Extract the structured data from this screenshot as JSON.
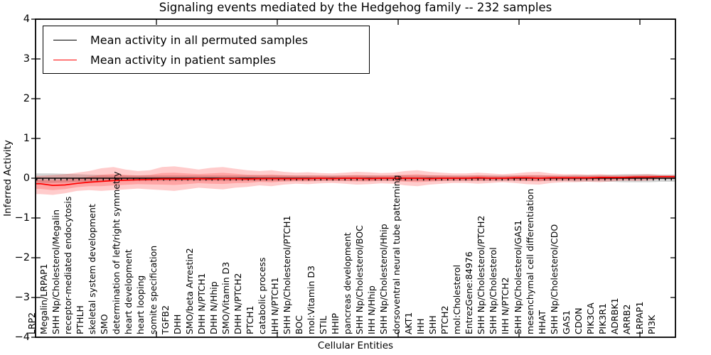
{
  "figure": {
    "title": "Signaling events mediated by the Hedgehog family -- 232 samples",
    "xlabel": "Cellular Entities",
    "ylabel": "Inferred Activity"
  },
  "legend": {
    "items": [
      {
        "label": "Mean activity in all permuted samples",
        "color": "#000000"
      },
      {
        "label": "Mean activity in patient samples",
        "color": "#ff0000"
      }
    ]
  },
  "axes": {
    "ylim": [
      -4,
      4
    ],
    "ytick_values": [
      4,
      3,
      2,
      1,
      0,
      -1,
      -2,
      -3,
      -4
    ],
    "yticklabels": [
      "4",
      "3",
      "2",
      "1",
      "0",
      "−1",
      "−2",
      "−3",
      "−4"
    ],
    "xtick_values": [
      10,
      20,
      30,
      40,
      50
    ],
    "grid": false
  },
  "chart_data": {
    "type": "line",
    "title": "Signaling events mediated by the Hedgehog family -- 232 samples",
    "xlabel": "Cellular Entities",
    "ylabel": "Inferred Activity",
    "ylim": [
      -4,
      4
    ],
    "legend_position": "upper left",
    "grid": false,
    "categories": [
      "LRP2",
      "Megalin/LRPAP1",
      "SHH Np/Cholesterol/Megalin",
      "receptor-mediated endocytosis",
      "PTHLH",
      "skeletal system development",
      "SMO",
      "determination of left/right symmetry",
      "heart development",
      "heart looping",
      "somite specification",
      "TGFB2",
      "DHH",
      "SMO/beta Arrestin2",
      "DHH N/PTCH1",
      "DHH N/Hhip",
      "SMO/Vitamin D3",
      "DHH N/PTCH2",
      "PTCH1",
      "catabolic process",
      "IHH N/PTCH1",
      "SHH Np/Cholesterol/PTCH1",
      "BOC",
      "mol:Vitamin D3",
      "STIL",
      "HHIP",
      "pancreas development",
      "SHH Np/Cholesterol/BOC",
      "IHH N/Hhip",
      "SHH Np/Cholesterol/Hhip",
      "dorsoventral neural tube patterning",
      "AKT1",
      "IHH",
      "SHH",
      "PTCH2",
      "mol:Cholesterol",
      "EntrezGene:84976",
      "SHH Np/Cholesterol/PTCH2",
      "SHH Np/Cholesterol",
      "IHH N/PTCH2",
      "SHH Np/Cholesterol/GAS1",
      "mesenchymal cell differentiation",
      "HHAT",
      "SHH Np/Cholesterol/CDO",
      "GAS1",
      "CDON",
      "PIK3CA",
      "PIK3R1",
      "ADRBK1",
      "ARRB2",
      "LRPAP1",
      "PI3K"
    ],
    "series": [
      {
        "name": "Mean activity in all permuted samples",
        "color": "#000000",
        "style": "solid-with-dotted-overlay",
        "values": [
          0,
          0,
          0,
          0,
          0,
          0,
          0,
          0,
          0,
          0,
          0,
          0,
          0,
          0,
          0,
          0,
          0,
          0,
          0,
          0,
          0,
          0,
          0,
          0,
          0,
          0,
          0,
          0,
          0,
          0,
          0,
          0,
          0,
          0,
          0,
          0,
          0,
          0,
          0,
          0,
          0,
          0,
          0,
          0,
          0,
          0,
          0,
          0,
          0,
          0,
          0,
          0
        ]
      },
      {
        "name": "Mean activity in patient samples",
        "color": "#ff0000",
        "style": "solid",
        "values": [
          -0.14,
          -0.18,
          -0.17,
          -0.13,
          -0.1,
          -0.08,
          -0.06,
          -0.05,
          -0.04,
          -0.03,
          -0.02,
          -0.02,
          -0.02,
          -0.01,
          -0.02,
          -0.01,
          -0.01,
          -0.02,
          -0.01,
          -0.01,
          -0.01,
          -0.01,
          -0.01,
          0,
          -0.01,
          0,
          0,
          -0.01,
          0,
          0,
          0,
          0,
          -0.01,
          0,
          0,
          0,
          0.01,
          0,
          0,
          0.01,
          0.01,
          0,
          0.01,
          0.01,
          0.01,
          0.01,
          0.02,
          0.02,
          0.02,
          0.03,
          0.03,
          0.04
        ]
      }
    ],
    "bands": [
      {
        "name": "permuted-samples-band",
        "color": "rgba(130,130,130,0.35)",
        "upper": [
          0.12,
          0.12,
          0.11,
          0.1,
          0.09,
          0.08,
          0.07,
          0.07,
          0.07,
          0.07,
          0.07,
          0.07,
          0.07,
          0.07,
          0.07,
          0.07,
          0.07,
          0.07,
          0.07,
          0.07,
          0.07,
          0.07,
          0.07,
          0.07,
          0.07,
          0.07,
          0.07,
          0.07,
          0.07,
          0.07,
          0.07,
          0.07,
          0.07,
          0.07,
          0.07,
          0.07,
          0.07,
          0.07,
          0.07,
          0.07,
          0.07,
          0.07,
          0.07,
          0.07,
          0.08,
          0.08,
          0.08,
          0.09,
          0.1,
          0.1,
          0.1,
          0.09
        ],
        "lower": [
          -0.12,
          -0.12,
          -0.11,
          -0.1,
          -0.09,
          -0.08,
          -0.07,
          -0.07,
          -0.07,
          -0.07,
          -0.07,
          -0.07,
          -0.07,
          -0.07,
          -0.07,
          -0.07,
          -0.07,
          -0.07,
          -0.07,
          -0.07,
          -0.07,
          -0.07,
          -0.07,
          -0.07,
          -0.07,
          -0.07,
          -0.07,
          -0.07,
          -0.07,
          -0.07,
          -0.07,
          -0.07,
          -0.07,
          -0.07,
          -0.07,
          -0.07,
          -0.07,
          -0.07,
          -0.07,
          -0.07,
          -0.07,
          -0.07,
          -0.07,
          -0.07,
          -0.08,
          -0.08,
          -0.08,
          -0.09,
          -0.1,
          -0.1,
          -0.1,
          -0.09
        ]
      },
      {
        "name": "patient-samples-band",
        "color": "rgba(255,0,0,0.20)",
        "upper": [
          0.06,
          0.08,
          0.1,
          0.14,
          0.18,
          0.25,
          0.28,
          0.22,
          0.18,
          0.2,
          0.28,
          0.3,
          0.26,
          0.22,
          0.26,
          0.28,
          0.24,
          0.2,
          0.18,
          0.2,
          0.16,
          0.14,
          0.15,
          0.13,
          0.12,
          0.14,
          0.16,
          0.15,
          0.13,
          0.14,
          0.18,
          0.2,
          0.16,
          0.14,
          0.12,
          0.12,
          0.14,
          0.12,
          0.1,
          0.12,
          0.15,
          0.16,
          0.12,
          0.1,
          0.1,
          0.09,
          0.1,
          0.08,
          0.08,
          0.09,
          0.1,
          0.08
        ],
        "lower": [
          -0.4,
          -0.42,
          -0.38,
          -0.32,
          -0.3,
          -0.32,
          -0.3,
          -0.28,
          -0.26,
          -0.28,
          -0.3,
          -0.32,
          -0.28,
          -0.24,
          -0.26,
          -0.28,
          -0.24,
          -0.22,
          -0.18,
          -0.2,
          -0.16,
          -0.14,
          -0.15,
          -0.13,
          -0.12,
          -0.14,
          -0.16,
          -0.15,
          -0.13,
          -0.14,
          -0.18,
          -0.2,
          -0.16,
          -0.14,
          -0.12,
          -0.12,
          -0.14,
          -0.12,
          -0.1,
          -0.12,
          -0.15,
          -0.16,
          -0.12,
          -0.1,
          -0.1,
          -0.09,
          -0.1,
          -0.08,
          -0.06,
          -0.07,
          -0.06,
          -0.02
        ]
      }
    ]
  }
}
